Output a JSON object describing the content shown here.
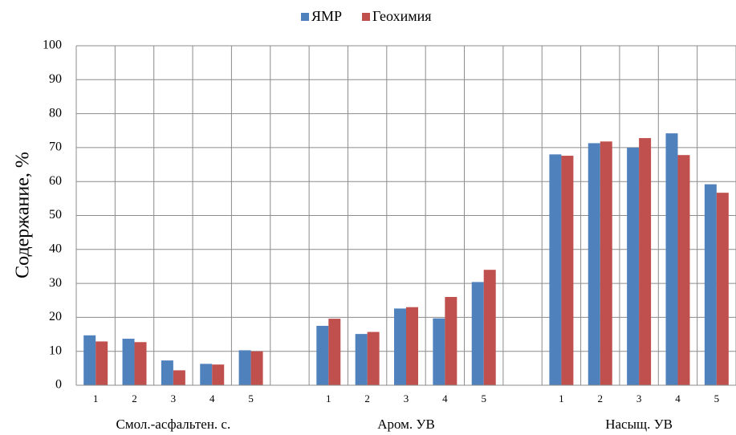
{
  "chart_data": {
    "type": "bar",
    "y_label": "Содержание, %",
    "categories": [
      "1",
      "2",
      "3",
      "4",
      "5",
      null,
      "1",
      "2",
      "3",
      "4",
      "5",
      null,
      "1",
      "2",
      "3",
      "4",
      "5"
    ],
    "group_labels": [
      "Смол.-асфальтен. с.",
      "Аром. УВ",
      "Насыщ. УВ"
    ],
    "series": [
      {
        "name": "ЯМР",
        "color": "#4f81bd",
        "values": [
          14.7,
          13.7,
          7.3,
          6.3,
          10.3,
          null,
          17.5,
          15.1,
          22.6,
          19.7,
          30.4,
          null,
          68.0,
          71.3,
          70.0,
          74.2,
          59.2
        ]
      },
      {
        "name": "Геохимия",
        "color": "#c0504d",
        "values": [
          12.9,
          12.7,
          4.4,
          6.1,
          10.0,
          null,
          19.6,
          15.7,
          23.0,
          26.0,
          34.0,
          null,
          67.6,
          71.8,
          72.8,
          67.8,
          56.7
        ]
      }
    ],
    "ylim": [
      0,
      100
    ],
    "yticks": [
      0,
      10,
      20,
      30,
      40,
      50,
      60,
      70,
      80,
      90,
      100
    ],
    "grid": true,
    "legend": "top"
  }
}
